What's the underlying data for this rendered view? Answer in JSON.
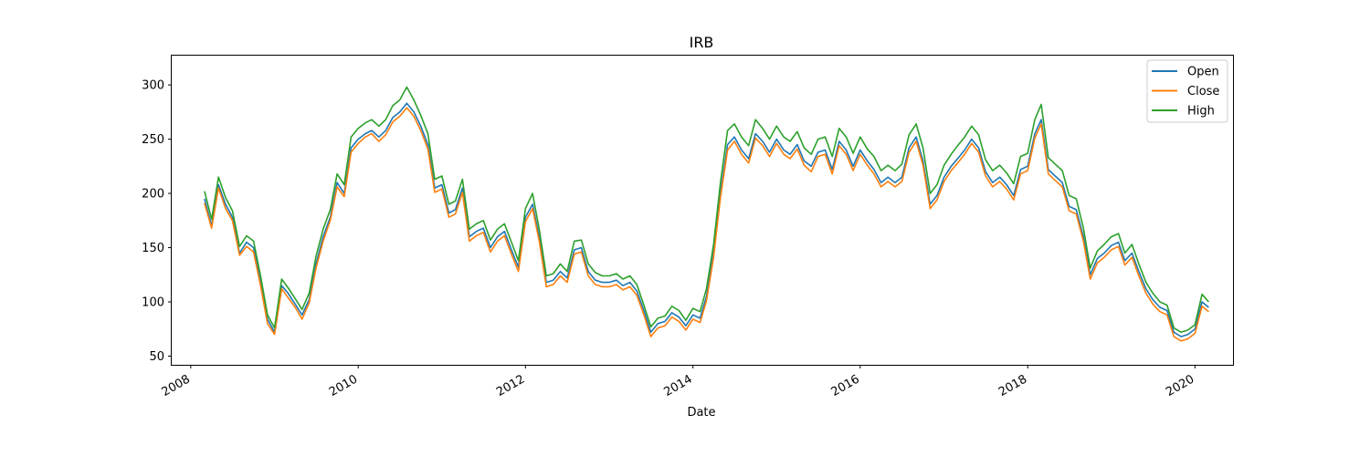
{
  "chart_data": {
    "type": "line",
    "title": "IRB",
    "xlabel": "Date",
    "ylabel": "",
    "x_type": "date",
    "xlim": [
      "2007-10-10",
      "2020-06-15"
    ],
    "ylim": [
      42,
      327
    ],
    "xticks": [
      "2008",
      "2010",
      "2012",
      "2014",
      "2016",
      "2018",
      "2020"
    ],
    "yticks": [
      50,
      100,
      150,
      200,
      250,
      300
    ],
    "grid": false,
    "legend": "top-right",
    "x": [
      "2008-03-01",
      "2008-04-01",
      "2008-05-01",
      "2008-06-01",
      "2008-07-01",
      "2008-08-01",
      "2008-09-01",
      "2008-10-01",
      "2008-11-01",
      "2008-12-01",
      "2009-01-01",
      "2009-02-01",
      "2009-03-01",
      "2009-04-01",
      "2009-05-01",
      "2009-06-01",
      "2009-07-01",
      "2009-08-01",
      "2009-09-01",
      "2009-10-01",
      "2009-11-01",
      "2009-12-01",
      "2010-01-01",
      "2010-02-01",
      "2010-03-01",
      "2010-04-01",
      "2010-05-01",
      "2010-06-01",
      "2010-07-01",
      "2010-08-01",
      "2010-09-01",
      "2010-10-01",
      "2010-11-01",
      "2010-12-01",
      "2011-01-01",
      "2011-02-01",
      "2011-03-01",
      "2011-04-01",
      "2011-05-01",
      "2011-06-01",
      "2011-07-01",
      "2011-08-01",
      "2011-09-01",
      "2011-10-01",
      "2011-11-01",
      "2011-12-01",
      "2012-01-01",
      "2012-02-01",
      "2012-03-01",
      "2012-04-01",
      "2012-05-01",
      "2012-06-01",
      "2012-07-01",
      "2012-08-01",
      "2012-09-01",
      "2012-10-01",
      "2012-11-01",
      "2012-12-01",
      "2013-01-01",
      "2013-02-01",
      "2013-03-01",
      "2013-04-01",
      "2013-05-01",
      "2013-06-01",
      "2013-07-01",
      "2013-08-01",
      "2013-09-01",
      "2013-10-01",
      "2013-11-01",
      "2013-12-01",
      "2014-01-01",
      "2014-02-01",
      "2014-03-01",
      "2014-04-01",
      "2014-05-01",
      "2014-06-01",
      "2014-07-01",
      "2014-08-01",
      "2014-09-01",
      "2014-10-01",
      "2014-11-01",
      "2014-12-01",
      "2015-01-01",
      "2015-02-01",
      "2015-03-01",
      "2015-04-01",
      "2015-05-01",
      "2015-06-01",
      "2015-07-01",
      "2015-08-01",
      "2015-09-01",
      "2015-10-01",
      "2015-11-01",
      "2015-12-01",
      "2016-01-01",
      "2016-02-01",
      "2016-03-01",
      "2016-04-01",
      "2016-05-01",
      "2016-06-01",
      "2016-07-01",
      "2016-08-01",
      "2016-09-01",
      "2016-10-01",
      "2016-11-01",
      "2016-12-01",
      "2017-01-01",
      "2017-02-01",
      "2017-03-01",
      "2017-04-01",
      "2017-05-01",
      "2017-06-01",
      "2017-07-01",
      "2017-08-01",
      "2017-09-01",
      "2017-10-01",
      "2017-11-01",
      "2017-12-01",
      "2018-01-01",
      "2018-02-01",
      "2018-03-01",
      "2018-04-01",
      "2018-05-01",
      "2018-06-01",
      "2018-07-01",
      "2018-08-01",
      "2018-09-01",
      "2018-10-01",
      "2018-11-01",
      "2018-12-01",
      "2019-01-01",
      "2019-02-01",
      "2019-03-01",
      "2019-04-01",
      "2019-05-01",
      "2019-06-01",
      "2019-07-01",
      "2019-08-01",
      "2019-09-01",
      "2019-10-01",
      "2019-11-01",
      "2019-12-01",
      "2020-01-01",
      "2020-02-01",
      "2020-03-01"
    ],
    "series": [
      {
        "name": "Open",
        "color": "#1f77b4",
        "values": [
          195,
          170,
          208,
          190,
          178,
          145,
          155,
          150,
          118,
          84,
          72,
          115,
          108,
          98,
          88,
          102,
          135,
          160,
          178,
          210,
          200,
          242,
          250,
          255,
          258,
          252,
          258,
          270,
          275,
          283,
          275,
          262,
          245,
          205,
          208,
          182,
          185,
          205,
          160,
          165,
          168,
          150,
          160,
          165,
          148,
          132,
          178,
          190,
          160,
          118,
          120,
          128,
          122,
          148,
          150,
          128,
          120,
          118,
          118,
          120,
          115,
          118,
          110,
          92,
          72,
          80,
          82,
          90,
          86,
          78,
          88,
          85,
          105,
          145,
          200,
          245,
          252,
          240,
          232,
          255,
          248,
          238,
          250,
          240,
          236,
          245,
          230,
          225,
          238,
          240,
          222,
          248,
          240,
          225,
          240,
          230,
          222,
          210,
          215,
          210,
          215,
          242,
          252,
          230,
          190,
          198,
          215,
          225,
          232,
          240,
          250,
          242,
          220,
          210,
          215,
          208,
          198,
          222,
          225,
          255,
          268,
          222,
          216,
          210,
          188,
          185,
          160,
          125,
          140,
          145,
          152,
          155,
          138,
          145,
          128,
          112,
          102,
          95,
          92,
          72,
          68,
          70,
          75,
          100,
          95
        ],
        "tags": []
      },
      {
        "name": "Close",
        "color": "#ff7f0e",
        "values": [
          191,
          168,
          205,
          186,
          175,
          143,
          151,
          146,
          115,
          80,
          70,
          112,
          104,
          95,
          84,
          99,
          131,
          156,
          175,
          206,
          197,
          238,
          246,
          252,
          255,
          248,
          254,
          266,
          271,
          279,
          271,
          258,
          241,
          201,
          204,
          178,
          181,
          201,
          156,
          161,
          164,
          146,
          156,
          161,
          144,
          128,
          174,
          186,
          156,
          114,
          116,
          124,
          118,
          144,
          146,
          124,
          116,
          114,
          114,
          116,
          111,
          114,
          106,
          88,
          68,
          76,
          78,
          86,
          82,
          74,
          84,
          81,
          101,
          141,
          196,
          240,
          248,
          236,
          228,
          251,
          244,
          234,
          246,
          236,
          232,
          241,
          226,
          220,
          234,
          236,
          218,
          244,
          236,
          221,
          236,
          226,
          218,
          206,
          211,
          206,
          211,
          238,
          248,
          226,
          186,
          194,
          211,
          221,
          228,
          236,
          246,
          238,
          216,
          206,
          211,
          204,
          194,
          218,
          221,
          251,
          264,
          218,
          212,
          206,
          184,
          181,
          156,
          121,
          136,
          141,
          148,
          151,
          134,
          141,
          124,
          108,
          98,
          91,
          88,
          68,
          64,
          66,
          71,
          96,
          91
        ],
        "tags": []
      },
      {
        "name": "High",
        "color": "#2ca02c",
        "values": [
          202,
          176,
          215,
          196,
          184,
          151,
          161,
          156,
          124,
          88,
          76,
          121,
          113,
          103,
          93,
          108,
          142,
          167,
          185,
          218,
          208,
          252,
          260,
          265,
          268,
          262,
          268,
          281,
          286,
          298,
          286,
          272,
          255,
          213,
          216,
          190,
          193,
          213,
          167,
          172,
          175,
          157,
          167,
          172,
          155,
          138,
          186,
          200,
          167,
          124,
          126,
          135,
          128,
          156,
          157,
          135,
          127,
          124,
          124,
          126,
          121,
          124,
          116,
          97,
          77,
          85,
          87,
          96,
          92,
          83,
          94,
          91,
          112,
          153,
          210,
          258,
          264,
          252,
          244,
          268,
          260,
          250,
          262,
          252,
          248,
          257,
          242,
          236,
          250,
          252,
          234,
          260,
          252,
          237,
          252,
          241,
          234,
          221,
          226,
          221,
          227,
          254,
          264,
          242,
          200,
          208,
          226,
          236,
          244,
          252,
          262,
          254,
          231,
          221,
          226,
          219,
          209,
          234,
          237,
          268,
          282,
          233,
          227,
          221,
          198,
          195,
          168,
          131,
          147,
          153,
          160,
          163,
          145,
          153,
          135,
          118,
          108,
          100,
          97,
          76,
          72,
          74,
          79,
          107,
          100
        ],
        "tags": []
      }
    ]
  }
}
